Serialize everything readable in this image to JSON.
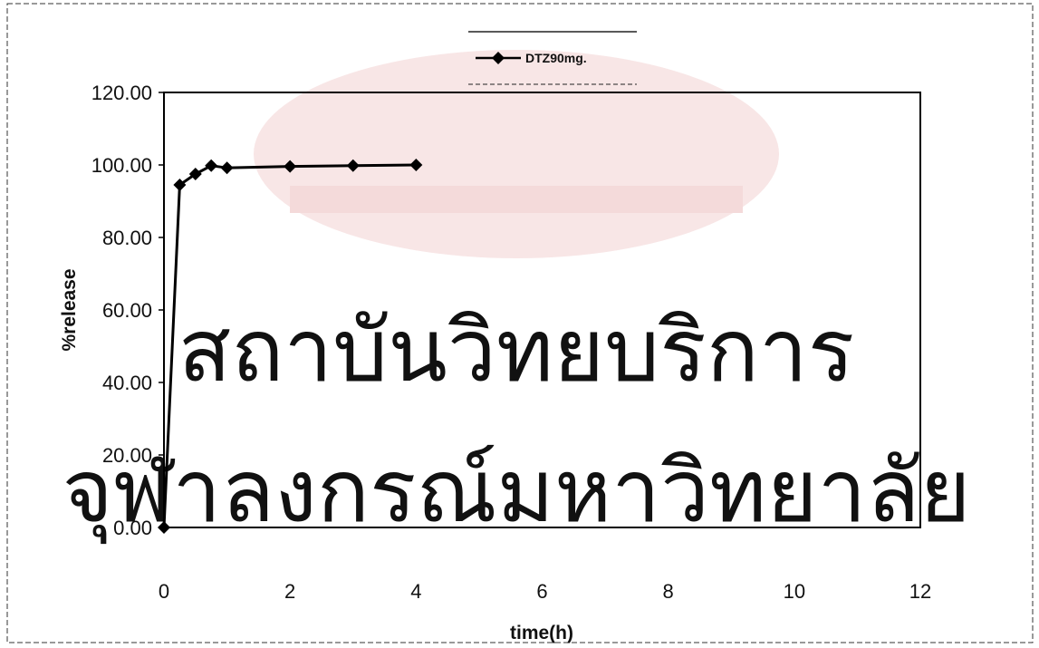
{
  "chart_data": {
    "type": "line",
    "title": "",
    "xlabel": "time(h)",
    "ylabel": "%release",
    "xlim": [
      0,
      12
    ],
    "ylim": [
      0,
      120
    ],
    "x_ticks": [
      "0",
      "2",
      "4",
      "6",
      "8",
      "10",
      "12"
    ],
    "y_ticks": [
      "0.00",
      "20.00",
      "40.00",
      "60.00",
      "80.00",
      "100.00",
      "120.00"
    ],
    "grid": false,
    "legend_position": "top-center",
    "series": [
      {
        "name": "DTZ90mg.",
        "color": "#000000",
        "marker": "diamond",
        "x": [
          0,
          0.25,
          0.5,
          0.75,
          1,
          2,
          3,
          4
        ],
        "y": [
          0.0,
          94.5,
          97.5,
          99.8,
          99.2,
          99.6,
          99.8,
          100.0
        ]
      }
    ]
  },
  "watermark": {
    "lines": [
      "สถาบันวิทยบริการ",
      "จุฬาลงกรณ์มหาวิทยาลัย"
    ],
    "color": "#f4dcdc"
  }
}
